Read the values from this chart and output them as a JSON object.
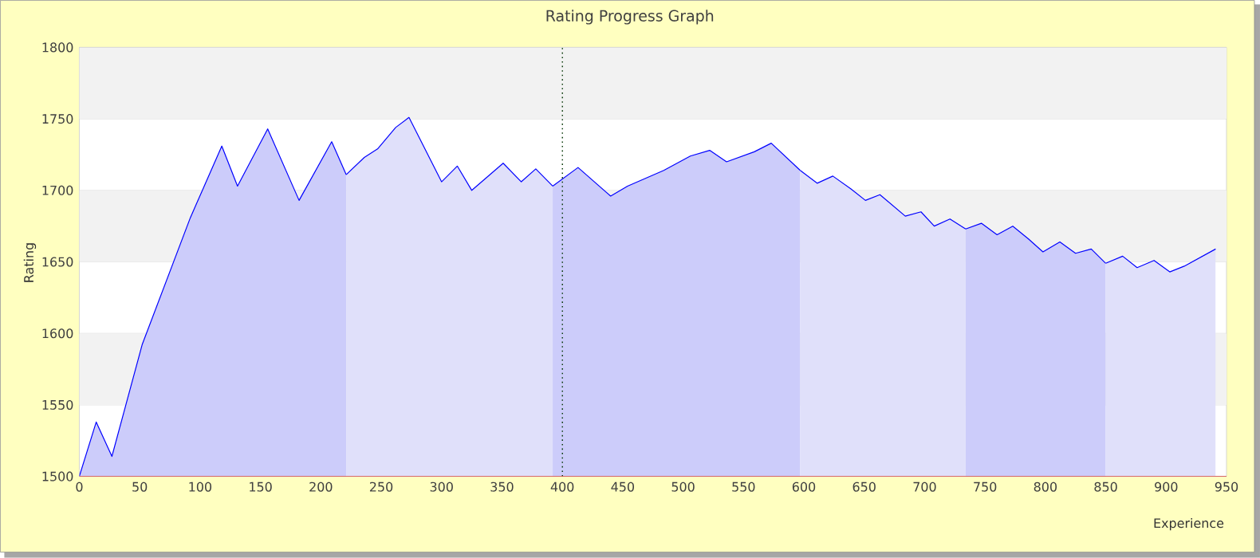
{
  "chart_data": {
    "type": "area",
    "title": "Rating Progress Graph",
    "xlabel": "Experience",
    "ylabel": "Rating",
    "xlim": [
      0,
      950
    ],
    "ylim": [
      1500,
      1800
    ],
    "xticks": [
      0,
      50,
      100,
      150,
      200,
      250,
      300,
      350,
      400,
      450,
      500,
      550,
      600,
      650,
      700,
      750,
      800,
      850,
      900,
      950
    ],
    "yticks": [
      1500,
      1550,
      1600,
      1650,
      1700,
      1750,
      1800
    ],
    "grid": "y",
    "ref_lines": [
      {
        "axis": "x",
        "value": 400,
        "line_style": "dotted",
        "color": "#003300"
      }
    ],
    "series": [
      {
        "color": "#ccccfa",
        "x": [
          0,
          14,
          27,
          52,
          92,
          118,
          131,
          156,
          182,
          209,
          221
        ],
        "values": [
          1500,
          1538,
          1514,
          1592,
          1681,
          1731,
          1703,
          1743,
          1693,
          1734,
          1711
        ]
      },
      {
        "color": "#e0e0fa",
        "x": [
          221,
          236,
          247,
          262,
          273,
          300,
          313,
          325,
          351,
          366,
          378,
          392
        ],
        "values": [
          1711,
          1723,
          1729,
          1744,
          1751,
          1706,
          1717,
          1700,
          1719,
          1706,
          1715,
          1703
        ]
      },
      {
        "color": "#ccccfa",
        "x": [
          392,
          413,
          440,
          454,
          484,
          506,
          522,
          536,
          559,
          573,
          597
        ],
        "values": [
          1703,
          1716,
          1696,
          1703,
          1714,
          1724,
          1728,
          1720,
          1727,
          1733,
          1714
        ]
      },
      {
        "color": "#e0e0fa",
        "x": [
          597,
          611,
          624,
          639,
          651,
          663,
          684,
          697,
          708,
          721,
          734
        ],
        "values": [
          1714,
          1705,
          1710,
          1701,
          1693,
          1697,
          1682,
          1685,
          1675,
          1680,
          1673
        ]
      },
      {
        "color": "#ccccfa",
        "x": [
          734,
          747,
          760,
          773,
          786,
          798,
          812,
          825,
          838,
          850
        ],
        "values": [
          1673,
          1677,
          1669,
          1675,
          1666,
          1657,
          1664,
          1656,
          1659,
          1649
        ]
      },
      {
        "color": "#e0e0fa",
        "x": [
          850,
          864,
          876,
          890,
          903,
          915,
          941
        ],
        "values": [
          1649,
          1654,
          1646,
          1651,
          1643,
          1647,
          1659
        ]
      }
    ]
  }
}
